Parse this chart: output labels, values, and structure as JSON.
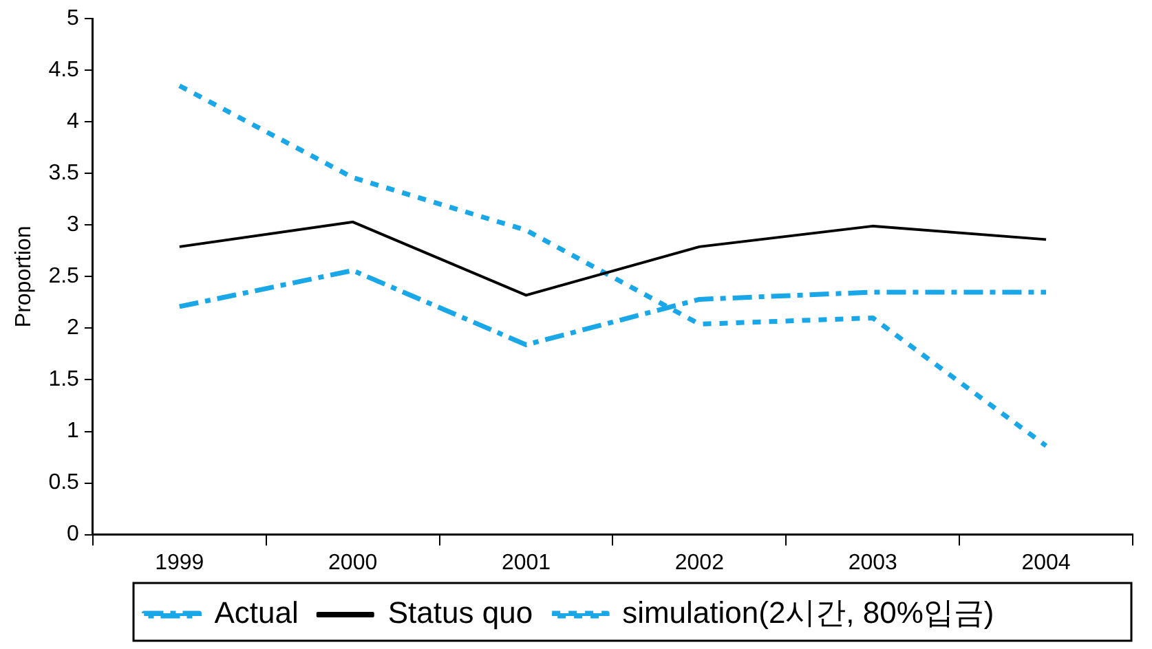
{
  "chart_data": {
    "type": "line",
    "ylabel": "Proportion",
    "categories": [
      "1999",
      "2000",
      "2001",
      "2002",
      "2003",
      "2004"
    ],
    "ylim": [
      0,
      5
    ],
    "yticks": [
      0,
      0.5,
      1,
      1.5,
      2,
      2.5,
      3,
      3.5,
      4,
      4.5,
      5
    ],
    "grid": false,
    "legend": "bottom",
    "marker": "none",
    "series": [
      {
        "name": "Actual",
        "color": "#1aa7e8",
        "line_style": "dashed",
        "values": [
          2.21,
          2.56,
          1.84,
          2.28,
          2.35,
          2.35
        ]
      },
      {
        "name": "Status quo",
        "color": "#000000",
        "line_style": "solid",
        "values": [
          2.79,
          3.03,
          2.32,
          2.79,
          2.99,
          2.86
        ]
      },
      {
        "name": "simulation(2시간, 80%입금)",
        "color": "#1aa7e8",
        "line_style": "dotted",
        "values": [
          4.35,
          3.46,
          2.95,
          2.04,
          2.1,
          0.86
        ]
      }
    ]
  }
}
